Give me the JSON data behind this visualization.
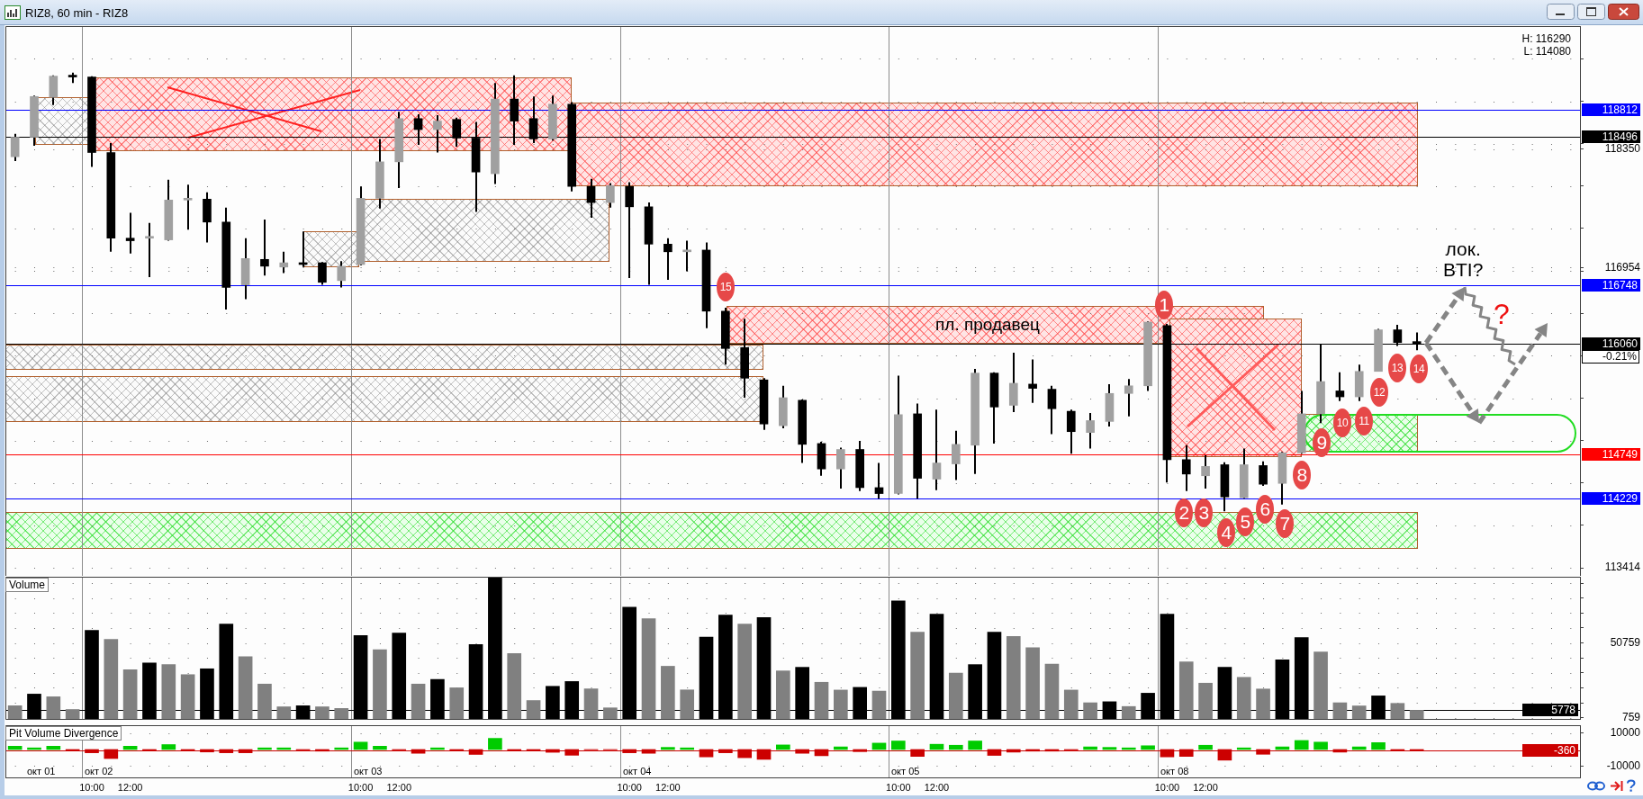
{
  "chart_data": [
    {
      "type": "candlestick",
      "title": "RIZ8, 60 min - RIZ8",
      "categories": [
        null,
        null,
        null,
        null,
        null,
        null,
        null,
        null,
        null,
        null,
        null,
        null,
        null,
        null,
        null,
        null,
        null,
        null,
        null,
        null,
        null,
        null,
        null,
        null,
        null,
        null,
        null,
        null,
        null,
        null,
        null,
        null,
        null,
        null,
        null,
        null,
        null,
        null,
        null,
        null,
        null,
        null,
        null,
        null,
        null,
        null,
        null,
        null,
        null,
        null,
        null,
        null,
        null,
        null,
        null,
        null,
        null,
        null,
        null,
        null,
        null,
        null,
        null,
        null,
        null,
        null,
        null,
        null,
        null,
        null,
        null,
        null,
        null,
        null,
        null,
        null,
        null,
        null,
        null,
        null,
        null,
        null
      ],
      "ohlc": [
        [
          118260,
          118530,
          118210,
          118490
        ],
        [
          118490,
          118980,
          118390,
          118970
        ],
        [
          118960,
          119220,
          118870,
          119210
        ],
        [
          119210,
          119250,
          119130,
          119200
        ],
        [
          119200,
          119210,
          118140,
          118310
        ],
        [
          118310,
          118420,
          117140,
          117300
        ],
        [
          117300,
          117600,
          117120,
          117270
        ],
        [
          117300,
          117480,
          116840,
          117310
        ],
        [
          117280,
          117990,
          117270,
          117750
        ],
        [
          117750,
          117930,
          117400,
          117750
        ],
        [
          117760,
          117840,
          117250,
          117490
        ],
        [
          117490,
          117660,
          116460,
          116720
        ],
        [
          116750,
          117300,
          116580,
          117060
        ],
        [
          117050,
          117520,
          116860,
          116970
        ],
        [
          116960,
          117140,
          116890,
          117010
        ],
        [
          117000,
          117380,
          116960,
          116990
        ],
        [
          117010,
          117020,
          116750,
          116780
        ],
        [
          116800,
          117030,
          116720,
          116970
        ],
        [
          116990,
          117910,
          116980,
          117770
        ],
        [
          117770,
          118470,
          117650,
          118200
        ],
        [
          118200,
          118790,
          117890,
          118710
        ],
        [
          118710,
          118760,
          118400,
          118580
        ],
        [
          118580,
          118750,
          118310,
          118680
        ],
        [
          118700,
          118720,
          118380,
          118480
        ],
        [
          118480,
          118670,
          117610,
          118080
        ],
        [
          118060,
          119130,
          117940,
          118940
        ],
        [
          118940,
          119220,
          118400,
          118680
        ],
        [
          118710,
          118970,
          118420,
          118470
        ],
        [
          118470,
          118980,
          118450,
          118880
        ],
        [
          118880,
          118900,
          117850,
          117910
        ],
        [
          117910,
          118000,
          117540,
          117720
        ],
        [
          117720,
          117950,
          117660,
          117920
        ],
        [
          117910,
          117960,
          116830,
          117670
        ],
        [
          117670,
          117720,
          116750,
          117230
        ],
        [
          117230,
          117300,
          116810,
          117140
        ],
        [
          117140,
          117270,
          116910,
          117140
        ],
        [
          117160,
          117250,
          116240,
          116440
        ],
        [
          116440,
          116480,
          115810,
          116000
        ],
        [
          116010,
          116350,
          115420,
          115650
        ],
        [
          115630,
          115650,
          115040,
          115110
        ],
        [
          115090,
          115560,
          115060,
          115420
        ],
        [
          115390,
          115400,
          114650,
          114870
        ],
        [
          114880,
          114900,
          114500,
          114580
        ],
        [
          114580,
          114830,
          114350,
          114810
        ],
        [
          114810,
          114910,
          114320,
          114360
        ],
        [
          114360,
          114650,
          114230,
          114290
        ],
        [
          114290,
          115680,
          114280,
          115220
        ],
        [
          115230,
          115350,
          114230,
          114470
        ],
        [
          114460,
          115280,
          114330,
          114650
        ],
        [
          114640,
          115030,
          114450,
          114870
        ],
        [
          114860,
          115760,
          114520,
          115710
        ],
        [
          115710,
          115720,
          114880,
          115310
        ],
        [
          115330,
          115950,
          115250,
          115590
        ],
        [
          115580,
          115870,
          115360,
          115530
        ],
        [
          115520,
          115560,
          114990,
          115290
        ],
        [
          115260,
          115280,
          114760,
          115020
        ],
        [
          115010,
          115240,
          114820,
          115150
        ],
        [
          115140,
          115580,
          115080,
          115470
        ],
        [
          115470,
          115640,
          115200,
          115560
        ],
        [
          115560,
          116320,
          115500,
          116310
        ],
        [
          116270,
          116290,
          114420,
          114690
        ],
        [
          114690,
          114860,
          114320,
          114520
        ],
        [
          114500,
          114740,
          114350,
          114610
        ],
        [
          114630,
          114660,
          114080,
          114250
        ],
        [
          114240,
          114820,
          114230,
          114630
        ],
        [
          114620,
          114670,
          114380,
          114400
        ],
        [
          114410,
          114780,
          114160,
          114770
        ],
        [
          114770,
          115500,
          114760,
          115230
        ],
        [
          115230,
          116050,
          115120,
          115610
        ],
        [
          115500,
          115720,
          115380,
          115430
        ],
        [
          115430,
          115810,
          115380,
          115730
        ],
        [
          115730,
          116230,
          115730,
          116220
        ],
        [
          116220,
          116280,
          116030,
          116070
        ],
        [
          116070,
          116190,
          115980,
          116060
        ],
        null,
        null,
        null,
        null,
        null,
        null,
        null,
        null
      ],
      "color": "#000000",
      "colors": [
        "#a0a0a0",
        "#a0a0a0",
        "#a0a0a0",
        "#000000",
        "#000000",
        "#000000",
        "#000000",
        "#a0a0a0",
        "#a0a0a0",
        "#a0a0a0",
        "#000000",
        "#000000",
        "#a0a0a0",
        "#000000",
        "#a0a0a0",
        "#000000",
        "#000000",
        "#a0a0a0",
        "#a0a0a0",
        "#a0a0a0",
        "#a0a0a0",
        "#000000",
        "#a0a0a0",
        "#000000",
        "#000000",
        "#a0a0a0",
        "#000000",
        "#000000",
        "#a0a0a0",
        "#000000",
        "#000000",
        "#a0a0a0",
        "#000000",
        "#000000",
        "#000000",
        "#a0a0a0",
        "#000000",
        "#000000",
        "#000000",
        "#000000",
        "#a0a0a0",
        "#000000",
        "#000000",
        "#a0a0a0",
        "#000000",
        "#000000",
        "#a0a0a0",
        "#000000",
        "#a0a0a0",
        "#a0a0a0",
        "#a0a0a0",
        "#000000",
        "#a0a0a0",
        "#000000",
        "#000000",
        "#000000",
        "#a0a0a0",
        "#a0a0a0",
        "#a0a0a0",
        "#a0a0a0",
        "#000000",
        "#000000",
        "#a0a0a0",
        "#000000",
        "#a0a0a0",
        "#000000",
        "#a0a0a0",
        "#a0a0a0",
        "#a0a0a0",
        "#000000",
        "#a0a0a0",
        "#a0a0a0",
        "#000000",
        "#000000",
        null,
        null,
        null,
        null,
        null,
        null,
        null,
        null
      ],
      "ylim": [
        113320,
        119800
      ],
      "yticks": [
        113414,
        {
          "value": 113914,
          "label": null
        },
        {
          "value": 114414,
          "label": null
        },
        {
          "value": 114914,
          "label": null
        },
        {
          "value": 115414,
          "label": null
        },
        {
          "value": 115914,
          "label": null
        },
        {
          "value": 116414,
          "label": null
        },
        {
          "value": 116914,
          "label": null
        },
        116954,
        {
          "value": 117414,
          "label": null
        },
        {
          "value": 117914,
          "label": null
        },
        118350,
        {
          "value": 118414,
          "label": null
        },
        {
          "value": 118914,
          "label": null
        },
        {
          "value": 119414,
          "label": null
        }
      ],
      "ref_lines": [
        {
          "axis": "y",
          "value": 118812,
          "label": "118812",
          "color": "#0000ff"
        },
        {
          "axis": "y",
          "value": 118496,
          "label": "118496",
          "color": "#000000"
        },
        {
          "axis": "y",
          "value": 116748,
          "label": "116748",
          "color": "#0000ff"
        },
        {
          "axis": "y",
          "value": 116060,
          "label": "116060",
          "color": "#000000"
        },
        {
          "axis": "y",
          "value": 114749,
          "label": "114749",
          "color": "#ff0000"
        },
        {
          "axis": "y",
          "value": 114229,
          "label": "114229",
          "color": "#0000ff"
        }
      ],
      "annotations": [
        "H: 116290",
        "L: 114080",
        "пл. продавец",
        {
          "text": "лок. BTI?",
          "y": 116748
        },
        "?",
        "-0.21%",
        "1",
        "2",
        "3",
        "4",
        "5",
        "6",
        "7",
        "8",
        "9",
        "10",
        "11",
        "12",
        "13",
        "14",
        "15"
      ],
      "grid": true
    },
    {
      "type": "bar",
      "title": "Volume",
      "categories": [
        null,
        null,
        null,
        null,
        null,
        null,
        null,
        null,
        null,
        null,
        null,
        null,
        null,
        null,
        null,
        null,
        null,
        null,
        null,
        null,
        null,
        null,
        null,
        null,
        null,
        null,
        null,
        null,
        null,
        null,
        null,
        null,
        null,
        null,
        null,
        null,
        null,
        null,
        null,
        null,
        null,
        null,
        null,
        null,
        null,
        null,
        null,
        null,
        null,
        null,
        null,
        null,
        null,
        null,
        null,
        null,
        null,
        null,
        null,
        null,
        null,
        null,
        null,
        null,
        null,
        null,
        null,
        null,
        null,
        null,
        null,
        null,
        null,
        null,
        null,
        null,
        null,
        null,
        null,
        null,
        null,
        null
      ],
      "values": [
        8800,
        16600,
        14800,
        6300,
        59200,
        53200,
        32800,
        37400,
        36300,
        29600,
        33500,
        63400,
        41600,
        23300,
        8100,
        8800,
        8100,
        7000,
        55700,
        46200,
        57400,
        23300,
        26400,
        20800,
        49700,
        94900,
        43700,
        12300,
        21800,
        25000,
        20100,
        7400,
        74700,
        67000,
        35200,
        19400,
        54600,
        69400,
        63400,
        67700,
        32100,
        34500,
        24500,
        19300,
        21100,
        18600,
        78800,
        57900,
        70000,
        30600,
        36300,
        57900,
        55100,
        47600,
        36700,
        19300,
        10800,
        11500,
        8300,
        17200,
        70000,
        38100,
        23900,
        34500,
        27800,
        20000,
        39500,
        54400,
        44800,
        10800,
        8700,
        15400,
        10400,
        5778,
        null,
        null,
        null,
        null,
        null,
        null,
        null,
        null
      ],
      "colors": [
        "#808080",
        "#000000",
        "#808080",
        "#808080",
        "#000000",
        "#808080",
        "#808080",
        "#000000",
        "#808080",
        "#808080",
        "#000000",
        "#000000",
        "#808080",
        "#808080",
        "#808080",
        "#000000",
        "#808080",
        "#808080",
        "#000000",
        "#808080",
        "#000000",
        "#808080",
        "#000000",
        "#808080",
        "#000000",
        "#000000",
        "#808080",
        "#808080",
        "#000000",
        "#000000",
        "#808080",
        "#808080",
        "#000000",
        "#808080",
        "#808080",
        "#808080",
        "#000000",
        "#000000",
        "#808080",
        "#000000",
        "#808080",
        "#000000",
        "#808080",
        "#808080",
        "#000000",
        "#808080",
        "#000000",
        "#808080",
        "#000000",
        "#808080",
        "#000000",
        "#000000",
        "#808080",
        "#808080",
        "#808080",
        "#808080",
        "#808080",
        "#000000",
        "#808080",
        "#000000",
        "#000000",
        "#808080",
        "#808080",
        "#000000",
        "#808080",
        "#808080",
        "#000000",
        "#000000",
        "#808080",
        "#808080",
        "#808080",
        "#000000",
        "#808080",
        "#808080",
        null,
        null,
        null,
        null,
        null,
        null,
        null,
        null
      ],
      "ylim": [
        0,
        95000
      ],
      "yticks": [
        759,
        {
          "value": 10759,
          "label": null
        },
        {
          "value": 20759,
          "label": null
        },
        {
          "value": 30759,
          "label": null
        },
        {
          "value": 40759,
          "label": null
        },
        50759,
        {
          "value": 60759,
          "label": null
        },
        {
          "value": 70759,
          "label": null
        },
        {
          "value": 80759,
          "label": null
        },
        {
          "value": 90759,
          "label": null
        }
      ],
      "ref_lines": [
        {
          "axis": "y",
          "value": 5778,
          "label": "5778",
          "color": "#000000"
        }
      ],
      "grid": true
    },
    {
      "type": "bar",
      "title": "Pit Volume Divergence",
      "categories": [
        null,
        null,
        null,
        null,
        "10:00",
        null,
        "12:00",
        null,
        null,
        null,
        null,
        null,
        null,
        null,
        null,
        null,
        null,
        null,
        "10:00",
        null,
        "12:00",
        null,
        null,
        null,
        null,
        null,
        null,
        null,
        null,
        null,
        null,
        null,
        "10:00",
        null,
        "12:00",
        null,
        null,
        null,
        null,
        null,
        null,
        null,
        null,
        null,
        null,
        null,
        "10:00",
        null,
        "12:00",
        null,
        null,
        null,
        null,
        null,
        null,
        null,
        null,
        null,
        null,
        null,
        "10:00",
        null,
        "12:00",
        null,
        null,
        null,
        null,
        null,
        null,
        null,
        null,
        null,
        null,
        null,
        null,
        null,
        null,
        null,
        null,
        null,
        null,
        null
      ],
      "values": [
        2000,
        1000,
        2000,
        -500,
        -2000,
        -5500,
        2000,
        -500,
        3000,
        -500,
        -1500,
        -2000,
        -2000,
        1000,
        1000,
        -300,
        -1000,
        1000,
        4500,
        2000,
        -300,
        -2300,
        1000,
        -500,
        -3000,
        6800,
        -500,
        -500,
        -1700,
        -3500,
        -200,
        -200,
        -2000,
        -2300,
        1300,
        1000,
        -4500,
        -2000,
        -5000,
        -6000,
        2800,
        -2300,
        -3800,
        1600,
        -1300,
        3900,
        5200,
        -4200,
        3200,
        2600,
        5200,
        -3600,
        -1600,
        -1000,
        -1000,
        -300,
        1600,
        1300,
        1000,
        2300,
        -4500,
        -4200,
        2600,
        -6500,
        1000,
        -2900,
        1600,
        5500,
        4500,
        -1600,
        1600,
        4200,
        -600,
        -360,
        null,
        null,
        null,
        null,
        null,
        null,
        null,
        null
      ],
      "colors": [
        "#00cc00",
        "#00cc00",
        "#00cc00",
        "#cc0000",
        "#cc0000",
        "#cc0000",
        "#00cc00",
        "#cc0000",
        "#00cc00",
        "#cc0000",
        "#cc0000",
        "#cc0000",
        "#cc0000",
        "#00cc00",
        "#00cc00",
        "#cc0000",
        "#cc0000",
        "#00cc00",
        "#00cc00",
        "#00cc00",
        "#cc0000",
        "#cc0000",
        "#00cc00",
        "#cc0000",
        "#cc0000",
        "#00cc00",
        "#cc0000",
        "#cc0000",
        "#cc0000",
        "#cc0000",
        "#cc0000",
        "#cc0000",
        "#cc0000",
        "#cc0000",
        "#00cc00",
        "#00cc00",
        "#cc0000",
        "#cc0000",
        "#cc0000",
        "#cc0000",
        "#00cc00",
        "#cc0000",
        "#cc0000",
        "#00cc00",
        "#cc0000",
        "#00cc00",
        "#00cc00",
        "#cc0000",
        "#00cc00",
        "#00cc00",
        "#00cc00",
        "#cc0000",
        "#cc0000",
        "#cc0000",
        "#cc0000",
        "#cc0000",
        "#00cc00",
        "#00cc00",
        "#00cc00",
        "#00cc00",
        "#cc0000",
        "#cc0000",
        "#00cc00",
        "#cc0000",
        "#00cc00",
        "#cc0000",
        "#00cc00",
        "#00cc00",
        "#00cc00",
        "#cc0000",
        "#00cc00",
        "#00cc00",
        "#cc0000",
        "#cc0000",
        null,
        null,
        null,
        null,
        null,
        null,
        null,
        null
      ],
      "ylim": [
        -17000,
        14800
      ],
      "yticks": [
        -10000,
        10000
      ],
      "ref_lines": [
        {
          "axis": "y",
          "value": -360,
          "label": "-360",
          "color": "#cc0000"
        }
      ],
      "annotations": [
        "окт 01",
        "окт 02",
        "окт 03",
        "окт 04",
        "окт 05",
        "окт 08"
      ],
      "grid": true
    }
  ]
}
